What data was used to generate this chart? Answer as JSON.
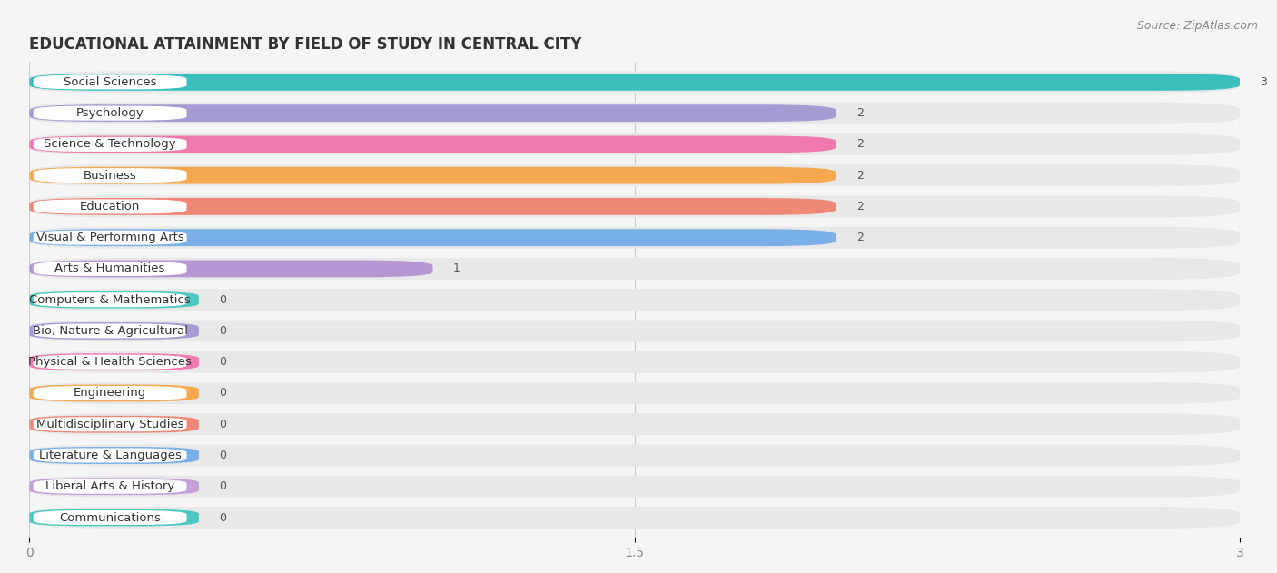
{
  "title": "Educational Attainment by Field of Study in Central City",
  "title_upper": "EDUCATIONAL ATTAINMENT BY FIELD OF STUDY IN CENTRAL CITY",
  "source": "Source: ZipAtlas.com",
  "categories": [
    "Social Sciences",
    "Psychology",
    "Science & Technology",
    "Business",
    "Education",
    "Visual & Performing Arts",
    "Arts & Humanities",
    "Computers & Mathematics",
    "Bio, Nature & Agricultural",
    "Physical & Health Sciences",
    "Engineering",
    "Multidisciplinary Studies",
    "Literature & Languages",
    "Liberal Arts & History",
    "Communications"
  ],
  "values": [
    3,
    2,
    2,
    2,
    2,
    2,
    1,
    0,
    0,
    0,
    0,
    0,
    0,
    0,
    0
  ],
  "bar_colors": [
    "#3abfbf",
    "#a89bd4",
    "#f07ab0",
    "#f5a84e",
    "#f08878",
    "#7ab0e8",
    "#b896d4",
    "#4dc8c0",
    "#a89bd4",
    "#f07ab0",
    "#f5a84e",
    "#f08878",
    "#7ab0e8",
    "#c4a0d8",
    "#4dc8c0"
  ],
  "xlim": [
    0,
    3
  ],
  "xticks": [
    0,
    1.5,
    3
  ],
  "background_color": "#f5f5f5",
  "bar_bg_color": "#e8e8e8",
  "label_bg_color": "#ffffff",
  "title_fontsize": 12,
  "label_fontsize": 9.5,
  "value_fontsize": 9
}
